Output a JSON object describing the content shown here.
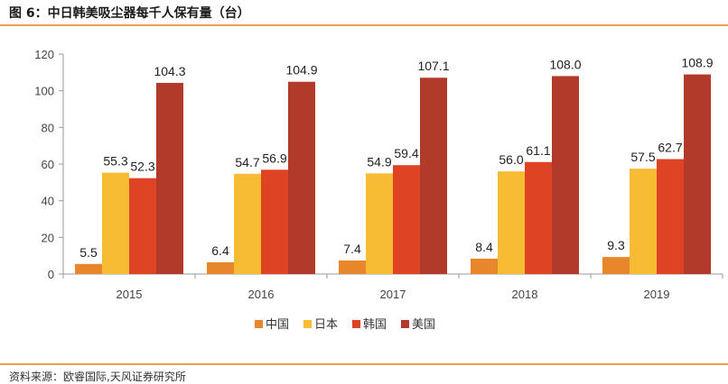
{
  "header": {
    "title": "图 6：中日韩美吸尘器每千人保有量（台）"
  },
  "footer": {
    "source": "资料来源：欧睿国际,天风证券研究所"
  },
  "chart_data": {
    "type": "bar",
    "categories": [
      "2015",
      "2016",
      "2017",
      "2018",
      "2019"
    ],
    "series": [
      {
        "name": "中国",
        "color": "#E8862B",
        "values": [
          5.5,
          6.4,
          7.4,
          8.4,
          9.3
        ]
      },
      {
        "name": "日本",
        "color": "#F7BC34",
        "values": [
          55.3,
          54.7,
          54.9,
          56.0,
          57.5
        ]
      },
      {
        "name": "韩国",
        "color": "#DE4324",
        "values": [
          52.3,
          56.9,
          59.4,
          61.1,
          62.7
        ]
      },
      {
        "name": "美国",
        "color": "#B23A2A",
        "values": [
          104.3,
          104.9,
          107.1,
          108.0,
          108.9
        ]
      }
    ],
    "value_labels": [
      [
        "5.5",
        "6.4",
        "7.4",
        "8.4",
        "9.3"
      ],
      [
        "55.3",
        "54.7",
        "54.9",
        "56.0",
        "57.5"
      ],
      [
        "52.3",
        "56.9",
        "59.4",
        "61.1",
        "62.7"
      ],
      [
        "104.3",
        "104.9",
        "107.1",
        "108.0",
        "108.9"
      ]
    ],
    "yticks": [
      "0",
      "20",
      "40",
      "60",
      "80",
      "100",
      "120"
    ],
    "ylim": [
      0,
      120
    ],
    "xlabel": "",
    "ylabel": "",
    "grid": false,
    "legend_position": "bottom-center"
  }
}
